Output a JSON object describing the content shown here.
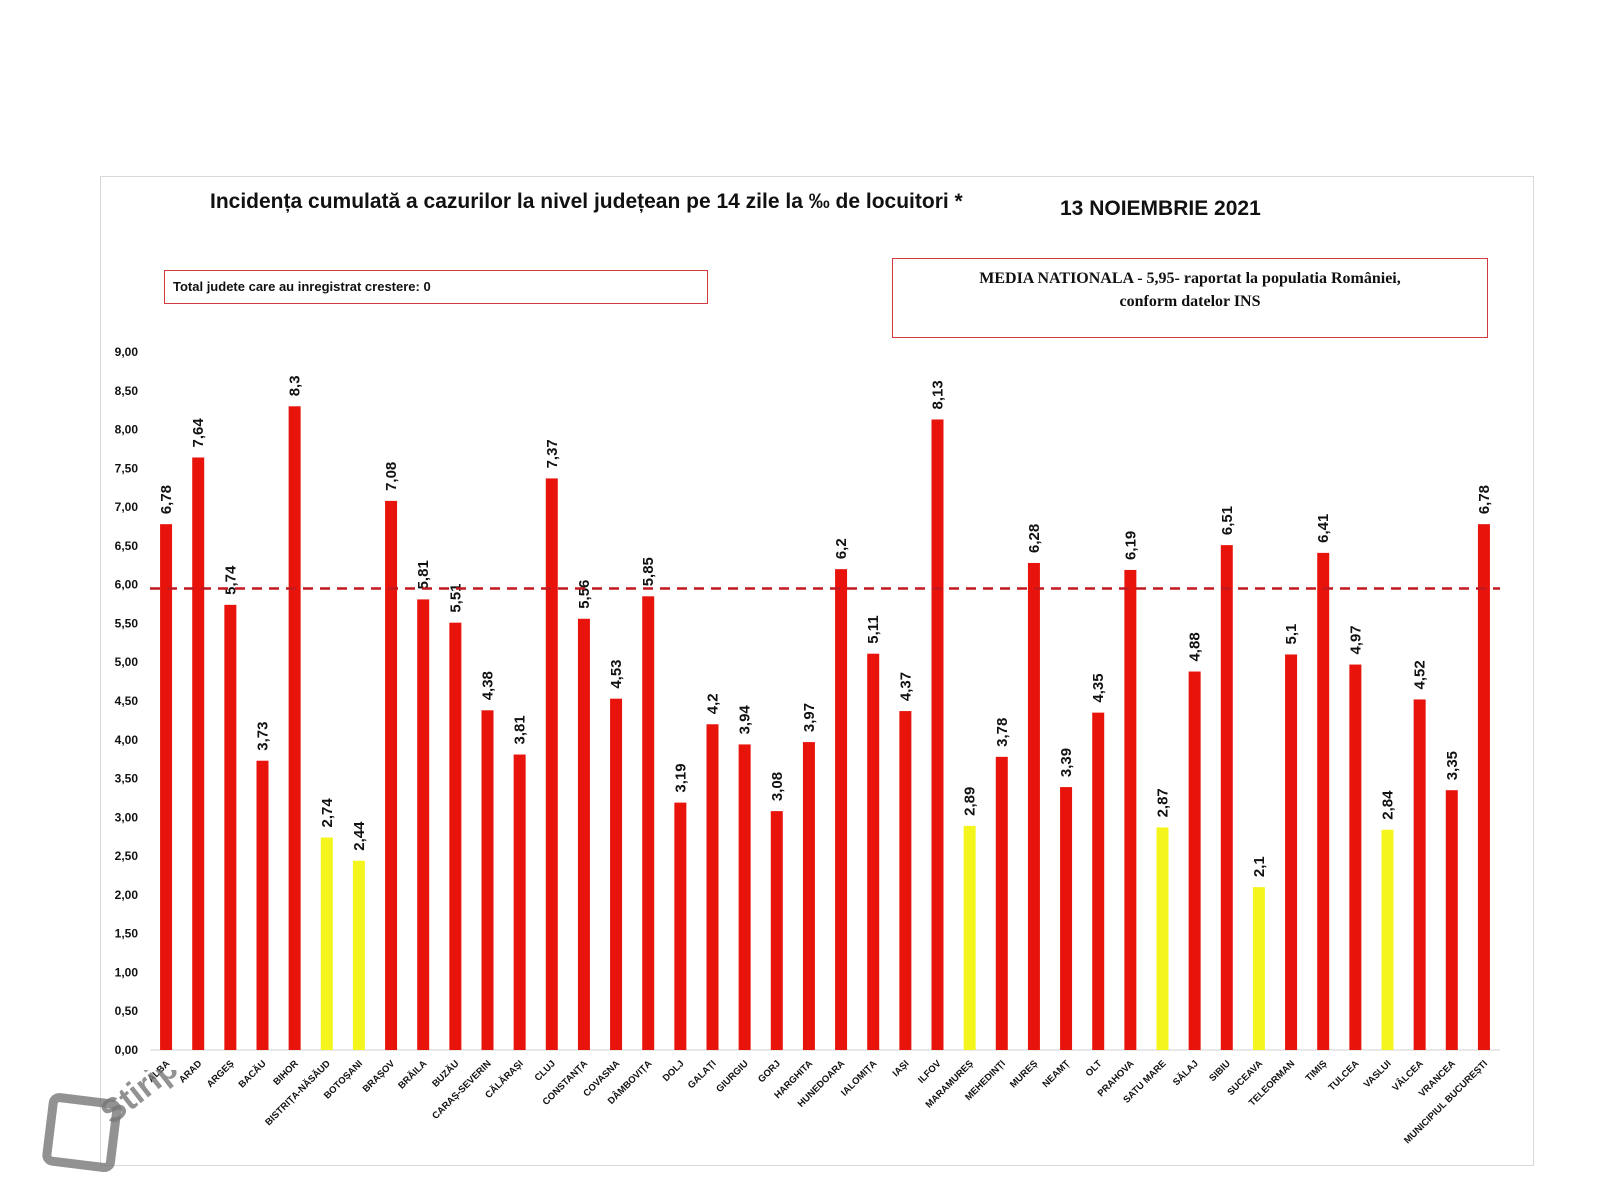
{
  "chart_data": {
    "type": "bar",
    "title": "Incidența cumulată a cazurilor la nivel județean pe 14 zile la ‰ de locuitori *",
    "date_label": "13 NOIEMBRIE 2021",
    "note_left": "Total judete care au inregistrat crestere: 0",
    "note_right_line1": "MEDIA NATIONALA - 5,95-  raportat la populatia României,",
    "note_right_line2": "conform datelor INS",
    "reference_line": {
      "value": 5.95,
      "label": "MEDIA NATIONALA"
    },
    "ylim": [
      0,
      9
    ],
    "yticks": [
      "0,00",
      "0,50",
      "1,00",
      "1,50",
      "2,00",
      "2,50",
      "3,00",
      "3,50",
      "4,00",
      "4,50",
      "5,00",
      "5,50",
      "6,00",
      "6,50",
      "7,00",
      "7,50",
      "8,00",
      "8,50",
      "9,00"
    ],
    "categories": [
      "ALBA",
      "ARAD",
      "ARGEȘ",
      "BACĂU",
      "BIHOR",
      "BISTRIȚA-NĂSĂUD",
      "BOTOȘANI",
      "BRAȘOV",
      "BRĂILA",
      "BUZĂU",
      "CARAȘ-SEVERIN",
      "CĂLĂRAȘI",
      "CLUJ",
      "CONSTANȚA",
      "COVASNA",
      "DÂMBOVIȚA",
      "DOLJ",
      "GALAȚI",
      "GIURGIU",
      "GORJ",
      "HARGHITA",
      "HUNEDOARA",
      "IALOMIȚA",
      "IAȘI",
      "ILFOV",
      "MARAMUREȘ",
      "MEHEDINȚI",
      "MUREȘ",
      "NEAMȚ",
      "OLT",
      "PRAHOVA",
      "SATU MARE",
      "SĂLAJ",
      "SIBIU",
      "SUCEAVA",
      "TELEORMAN",
      "TIMIȘ",
      "TULCEA",
      "VASLUI",
      "VÂLCEA",
      "VRANCEA",
      "MUNICIPIUL BUCUREȘTI"
    ],
    "values": [
      6.78,
      7.64,
      5.74,
      3.73,
      8.3,
      2.74,
      2.44,
      7.08,
      5.81,
      5.51,
      4.38,
      3.81,
      7.37,
      5.56,
      4.53,
      5.85,
      3.19,
      4.2,
      3.94,
      3.08,
      3.97,
      6.2,
      5.11,
      4.37,
      8.13,
      2.89,
      3.78,
      6.28,
      3.39,
      4.35,
      6.19,
      2.87,
      4.88,
      6.51,
      2.1,
      5.1,
      6.41,
      4.97,
      2.84,
      4.52,
      3.35,
      6.78
    ],
    "value_labels": [
      "6,78",
      "7,64",
      "5,74",
      "3,73",
      "8,3",
      "2,74",
      "2,44",
      "7,08",
      "5,81",
      "5,51",
      "4,38",
      "3,81",
      "7,37",
      "5,56",
      "4,53",
      "5,85",
      "3,19",
      "4,2",
      "3,94",
      "3,08",
      "3,97",
      "6,2",
      "5,11",
      "4,37",
      "8,13",
      "2,89",
      "3,78",
      "6,28",
      "3,39",
      "4,35",
      "6,19",
      "2,87",
      "4,88",
      "6,51",
      "2,1",
      "5,1",
      "6,41",
      "4,97",
      "2,84",
      "4,52",
      "3,35",
      "6,78"
    ],
    "colors": [
      "red",
      "red",
      "red",
      "red",
      "red",
      "yellow",
      "yellow",
      "red",
      "red",
      "red",
      "red",
      "red",
      "red",
      "red",
      "red",
      "red",
      "red",
      "red",
      "red",
      "red",
      "red",
      "red",
      "red",
      "red",
      "red",
      "yellow",
      "red",
      "red",
      "red",
      "red",
      "red",
      "yellow",
      "red",
      "red",
      "yellow",
      "red",
      "red",
      "red",
      "yellow",
      "red",
      "red",
      "red"
    ],
    "palette": {
      "red": "#e8140c",
      "yellow": "#f5f51e",
      "reference": "#c0181e"
    }
  },
  "watermark": {
    "text": "Stiripesurse.ro"
  }
}
